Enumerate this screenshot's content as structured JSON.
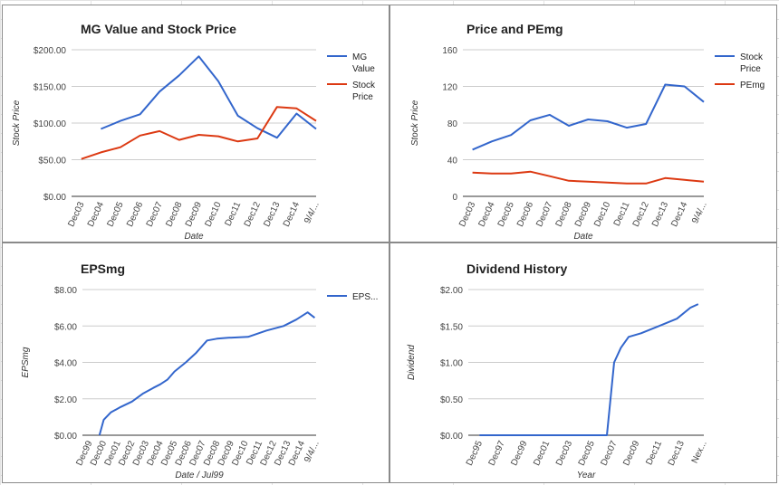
{
  "colors": {
    "blue": "#3366cc",
    "red": "#dc3912",
    "grid": "#cccccc",
    "axis": "#333333"
  },
  "chart_data": [
    {
      "type": "line",
      "title": "MG Value and Stock Price",
      "xlabel": "Date",
      "ylabel": "Stock Price",
      "categories": [
        "Dec03",
        "Dec04",
        "Dec05",
        "Dec06",
        "Dec07",
        "Dec08",
        "Dec09",
        "Dec10",
        "Dec11",
        "Dec12",
        "Dec13",
        "Dec14",
        "9/4/..."
      ],
      "ylim": [
        0,
        200
      ],
      "yticks": [
        "$0.00",
        "$50.00",
        "$100.00",
        "$150.00",
        "$200.00"
      ],
      "ytick_values": [
        0,
        50,
        100,
        150,
        200
      ],
      "legend_position": "right",
      "series": [
        {
          "name": "MG Value",
          "legend_lines": [
            "MG",
            "Value"
          ],
          "color": "#3366cc",
          "values": [
            null,
            92,
            103,
            112,
            143,
            165,
            191,
            157,
            110,
            93,
            80,
            113,
            92
          ]
        },
        {
          "name": "Stock Price",
          "legend_lines": [
            "Stock",
            "Price"
          ],
          "color": "#dc3912",
          "values": [
            51,
            60,
            67,
            83,
            89,
            77,
            84,
            82,
            75,
            79,
            122,
            120,
            103
          ]
        }
      ]
    },
    {
      "type": "line",
      "title": "Price and PEmg",
      "xlabel": "Date",
      "ylabel": "Stock Price",
      "categories": [
        "Dec03",
        "Dec04",
        "Dec05",
        "Dec06",
        "Dec07",
        "Dec08",
        "Dec09",
        "Dec10",
        "Dec11",
        "Dec12",
        "Dec13",
        "Dec14",
        "9/4/..."
      ],
      "ylim": [
        0,
        160
      ],
      "yticks": [
        "0",
        "40",
        "80",
        "120",
        "160"
      ],
      "ytick_values": [
        0,
        40,
        80,
        120,
        160
      ],
      "legend_position": "right",
      "series": [
        {
          "name": "Stock Price",
          "legend_lines": [
            "Stock",
            "Price"
          ],
          "color": "#3366cc",
          "values": [
            51,
            60,
            67,
            83,
            89,
            77,
            84,
            82,
            75,
            79,
            122,
            120,
            103
          ]
        },
        {
          "name": "PEmg",
          "legend_lines": [
            "PEmg"
          ],
          "color": "#dc3912",
          "values": [
            26,
            25,
            25,
            27,
            22,
            17,
            16,
            15,
            14,
            14,
            20,
            18,
            16
          ]
        }
      ]
    },
    {
      "type": "line",
      "title": "EPSmg",
      "xlabel": "Date / Jul99",
      "ylabel": "EPSmg",
      "categories": [
        "Dec99",
        "Dec00",
        "Dec01",
        "Dec02",
        "Dec03",
        "Dec04",
        "Dec05",
        "Dec06",
        "Dec07",
        "Dec08",
        "Dec09",
        "Dec10",
        "Dec11",
        "Dec12",
        "Dec13",
        "Dec14",
        "9/4/..."
      ],
      "ylim": [
        0,
        8
      ],
      "yticks": [
        "$0.00",
        "$2.00",
        "$4.00",
        "$6.00",
        "$8.00"
      ],
      "ytick_values": [
        0,
        2,
        4,
        6,
        8
      ],
      "legend_position": "right",
      "series": [
        {
          "name": "EPS...",
          "legend_lines": [
            "EPS..."
          ],
          "color": "#3366cc",
          "x": [
            0.7,
            1,
            1.5,
            2.2,
            3,
            3.8,
            4.5,
            5,
            5.5,
            6,
            6.8,
            7.5,
            8.3,
            9,
            9.8,
            11.2,
            12.5,
            13.7,
            14.6,
            15.4,
            15.9
          ],
          "values": [
            0,
            0.85,
            1.25,
            1.55,
            1.85,
            2.3,
            2.6,
            2.8,
            3.05,
            3.5,
            4.0,
            4.5,
            5.2,
            5.3,
            5.35,
            5.4,
            5.75,
            6.0,
            6.35,
            6.75,
            6.45
          ]
        }
      ]
    },
    {
      "type": "line",
      "title": "Dividend History",
      "xlabel": "Year",
      "ylabel": "Dividend",
      "categories": [
        "Dec95",
        "Dec97",
        "Dec99",
        "Dec01",
        "Dec03",
        "Dec05",
        "Dec07",
        "Dec09",
        "Dec11",
        "Dec13",
        "Nex..."
      ],
      "ylim": [
        0,
        2
      ],
      "yticks": [
        "$0.00",
        "$0.50",
        "$1.00",
        "$1.50",
        "$2.00"
      ],
      "ytick_values": [
        0,
        0.5,
        1,
        1.5,
        2
      ],
      "legend_position": "none",
      "series": [
        {
          "name": "",
          "color": "#3366cc",
          "x": [
            0,
            5.68,
            6.0,
            6.3,
            6.65,
            7.2,
            8.0,
            8.8,
            9.4,
            9.75
          ],
          "values": [
            0,
            0,
            1.0,
            1.2,
            1.35,
            1.4,
            1.5,
            1.6,
            1.75,
            1.8
          ]
        }
      ]
    }
  ]
}
